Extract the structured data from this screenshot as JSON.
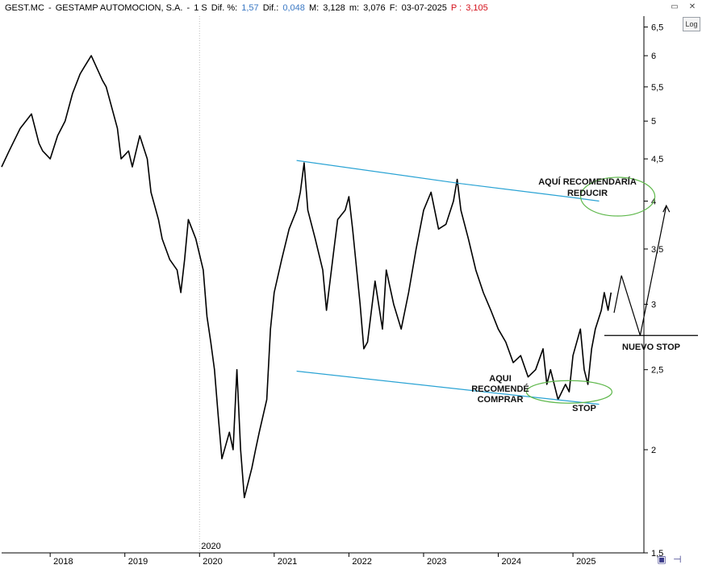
{
  "header": {
    "ticker": "GEST.MC",
    "separator": "-",
    "company": "GESTAMP AUTOMOCION, S.A.",
    "period_sep": "-",
    "period": "1 S",
    "dif_pct_label": "Dif. %:",
    "dif_pct_value": "1,57",
    "dif_label": "Dif.:",
    "dif_value": "0,048",
    "max_label": "M:",
    "max_value": "3,128",
    "min_label": "m:",
    "min_value": "3,076",
    "date_label": "F:",
    "date_value": "03-07-2025",
    "price_label": "P :",
    "price_value": "3,105"
  },
  "controls": {
    "log_label": "Log",
    "minimize_icon": "minimize-icon",
    "close_icon": "close-icon",
    "save_icon": "save-icon",
    "pin_icon": "pin-icon"
  },
  "colors": {
    "price": "#000000",
    "channel": "#2aa3d4",
    "ellipse": "#5fb84c",
    "header_blue": "#3a78c4",
    "header_red": "#d4111b"
  },
  "chart_data": {
    "type": "line",
    "scale": "log",
    "ylim": [
      1.5,
      6.7
    ],
    "xlim": [
      2017.35,
      2025.95
    ],
    "y_ticks": [
      "1,5",
      "2",
      "2,5",
      "3",
      "3,5",
      "4",
      "4,5",
      "5",
      "5,5",
      "6",
      "6,5"
    ],
    "y_tick_values": [
      1.5,
      2,
      2.5,
      3,
      3.5,
      4,
      4.5,
      5,
      5.5,
      6,
      6.5
    ],
    "x_ticks": [
      "2018",
      "2019",
      "2020",
      "2021",
      "2022",
      "2023",
      "2024",
      "2025"
    ],
    "x_tick_values": [
      2018,
      2019,
      2020,
      2021,
      2022,
      2023,
      2024,
      2025
    ],
    "year_marker_label": "2020",
    "series": [
      {
        "x": [
          2017.35,
          2017.45,
          2017.6,
          2017.75,
          2017.85,
          2017.9,
          2018.0,
          2018.1,
          2018.2,
          2018.3,
          2018.4,
          2018.45,
          2018.55,
          2018.7,
          2018.75,
          2018.9,
          2018.95,
          2019.05,
          2019.1,
          2019.2,
          2019.3,
          2019.35,
          2019.45,
          2019.5,
          2019.6,
          2019.7,
          2019.75,
          2019.8,
          2019.85,
          2019.9,
          2019.95,
          2020.05,
          2020.1,
          2020.15,
          2020.2,
          2020.25,
          2020.3,
          2020.4,
          2020.45,
          2020.5,
          2020.55,
          2020.6,
          2020.7,
          2020.75,
          2020.8,
          2020.9,
          2020.95,
          2021.0,
          2021.1,
          2021.2,
          2021.3,
          2021.35,
          2021.4,
          2021.45,
          2021.55,
          2021.65,
          2021.7,
          2021.8,
          2021.85,
          2021.95,
          2022.0,
          2022.05,
          2022.15,
          2022.2,
          2022.25,
          2022.35,
          2022.45,
          2022.5,
          2022.6,
          2022.7,
          2022.8,
          2022.9,
          2023.0,
          2023.1,
          2023.2,
          2023.3,
          2023.4,
          2023.45,
          2023.5,
          2023.6,
          2023.7,
          2023.8,
          2023.9,
          2024.0,
          2024.1,
          2024.2,
          2024.3,
          2024.4,
          2024.5,
          2024.6,
          2024.65,
          2024.7,
          2024.8,
          2024.9,
          2024.95,
          2025.0,
          2025.1,
          2025.15,
          2025.2,
          2025.25,
          2025.3,
          2025.38,
          2025.42,
          2025.47,
          2025.51
        ],
        "y": [
          4.4,
          4.6,
          4.9,
          5.1,
          4.7,
          4.6,
          4.5,
          4.8,
          5.0,
          5.4,
          5.7,
          5.8,
          6.0,
          5.6,
          5.5,
          4.9,
          4.5,
          4.6,
          4.4,
          4.8,
          4.5,
          4.1,
          3.8,
          3.6,
          3.4,
          3.3,
          3.1,
          3.4,
          3.8,
          3.7,
          3.6,
          3.3,
          2.9,
          2.7,
          2.5,
          2.2,
          1.95,
          2.1,
          2.0,
          2.5,
          2.0,
          1.75,
          1.9,
          2.0,
          2.1,
          2.3,
          2.8,
          3.1,
          3.4,
          3.7,
          3.9,
          4.1,
          4.45,
          3.9,
          3.6,
          3.3,
          2.95,
          3.5,
          3.8,
          3.9,
          4.05,
          3.7,
          3.0,
          2.65,
          2.7,
          3.2,
          2.8,
          3.3,
          3.0,
          2.8,
          3.1,
          3.5,
          3.9,
          4.1,
          3.7,
          3.75,
          4.0,
          4.25,
          3.9,
          3.6,
          3.3,
          3.1,
          2.95,
          2.8,
          2.7,
          2.55,
          2.6,
          2.45,
          2.5,
          2.65,
          2.4,
          2.5,
          2.3,
          2.4,
          2.35,
          2.6,
          2.8,
          2.5,
          2.4,
          2.65,
          2.8,
          2.95,
          3.1,
          2.95,
          3.1
        ]
      }
    ],
    "channel_upper": {
      "x": [
        2021.3,
        2023.5,
        2025.0,
        2025.35
      ],
      "y": [
        4.48,
        4.2,
        4.04,
        4.0
      ]
    },
    "channel_lower": {
      "x": [
        2021.3,
        2024.0,
        2025.35
      ],
      "y": [
        2.49,
        2.34,
        2.27
      ]
    },
    "annotations": {
      "reducir_line1": "AQUÍ RECOMENDARÍA",
      "reducir_line2": "REDUCIR",
      "comprar_line1": "AQUI",
      "comprar_line2": "RECOMENDÉ",
      "comprar_line3": "COMPRAR",
      "stop": "STOP",
      "nuevo_stop": "NUEVO STOP"
    },
    "nuevo_stop_level": 2.75,
    "reducir_ellipse": {
      "x": 2025.6,
      "y": 4.05
    },
    "comprar_ellipse": {
      "x": 2024.95,
      "y": 2.35
    },
    "projected_path": {
      "x": [
        2025.55,
        2025.65,
        2025.9,
        2026.25
      ],
      "y": [
        2.93,
        3.25,
        2.75,
        3.95
      ]
    }
  }
}
